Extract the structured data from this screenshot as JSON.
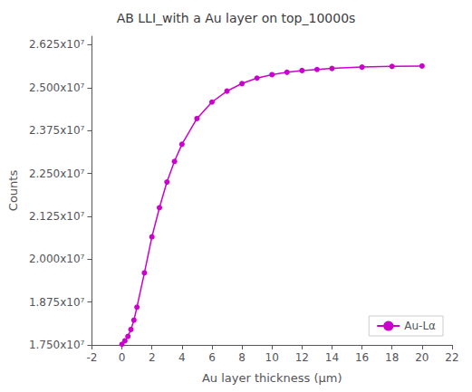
{
  "chart_data": {
    "type": "line",
    "title": "AB LLI_with a Au layer on top_10000s",
    "xlabel": "Au layer thickness (μm)",
    "ylabel": "Counts",
    "x": [
      0.0,
      0.2,
      0.4,
      0.6,
      0.8,
      1.0,
      1.5,
      2.0,
      2.5,
      3.0,
      3.5,
      4.0,
      5.0,
      6.0,
      7.0,
      8.0,
      9.0,
      10.0,
      11.0,
      12.0,
      13.0,
      14.0,
      16.0,
      18.0,
      20.0
    ],
    "series": [
      {
        "name": "Au-Lα",
        "color": "#cc00cc",
        "marker": "circle",
        "values": [
          17520000,
          17620000,
          17750000,
          17950000,
          18220000,
          18600000,
          19600000,
          20650000,
          21500000,
          22250000,
          22850000,
          23350000,
          24100000,
          24580000,
          24900000,
          25120000,
          25280000,
          25380000,
          25450000,
          25500000,
          25530000,
          25560000,
          25600000,
          25620000,
          25630000
        ]
      }
    ],
    "xlim": [
      -2,
      22
    ],
    "xticks": [
      -2,
      0,
      2,
      4,
      6,
      8,
      10,
      12,
      14,
      16,
      18,
      20,
      22
    ],
    "ylim": [
      17500000,
      26500000
    ],
    "yticks": [
      {
        "value": 17500000,
        "label": "1.750x10⁷"
      },
      {
        "value": 18750000,
        "label": "1.875x10⁷"
      },
      {
        "value": 20000000,
        "label": "2.000x10⁷"
      },
      {
        "value": 21250000,
        "label": "2.125x10⁷"
      },
      {
        "value": 22500000,
        "label": "2.250x10⁷"
      },
      {
        "value": 23750000,
        "label": "2.375x10⁷"
      },
      {
        "value": 25000000,
        "label": "2.500x10⁷"
      },
      {
        "value": 26250000,
        "label": "2.625x10⁷"
      }
    ],
    "grid": false,
    "legend": "lower right"
  }
}
